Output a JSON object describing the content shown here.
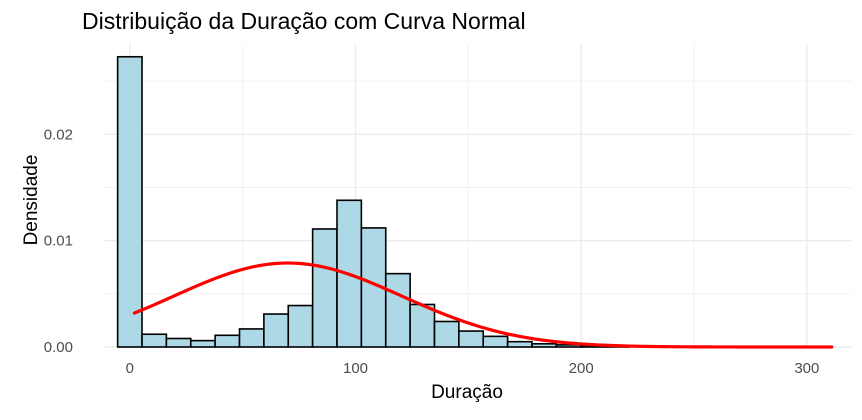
{
  "chart_data": {
    "type": "bar",
    "title": "Distribuição da Duração com Curva Normal",
    "xlabel": "Duração",
    "ylabel": "Densidade",
    "xlim": [
      -11,
      320
    ],
    "ylim": [
      0,
      0.0285
    ],
    "grid": true,
    "x_ticks": [
      0,
      100,
      200,
      300
    ],
    "x_tick_labels": [
      "0",
      "100",
      "200",
      "300"
    ],
    "y_ticks": [
      0.0,
      0.01,
      0.02
    ],
    "y_tick_labels": [
      "0.00",
      "0.01",
      "0.02"
    ],
    "bin_width": 10.8,
    "bin_start": -5.4,
    "bins": [
      {
        "x0": -5.4,
        "x1": 5.4,
        "density": 0.0273
      },
      {
        "x0": 5.4,
        "x1": 16.2,
        "density": 0.0012
      },
      {
        "x0": 16.2,
        "x1": 27.0,
        "density": 0.0008
      },
      {
        "x0": 27.0,
        "x1": 37.8,
        "density": 0.0006
      },
      {
        "x0": 37.8,
        "x1": 48.6,
        "density": 0.0011
      },
      {
        "x0": 48.6,
        "x1": 59.4,
        "density": 0.0017
      },
      {
        "x0": 59.4,
        "x1": 70.2,
        "density": 0.0031
      },
      {
        "x0": 70.2,
        "x1": 81.0,
        "density": 0.0039
      },
      {
        "x0": 81.0,
        "x1": 91.8,
        "density": 0.0111
      },
      {
        "x0": 91.8,
        "x1": 102.6,
        "density": 0.0138
      },
      {
        "x0": 102.6,
        "x1": 113.4,
        "density": 0.0112
      },
      {
        "x0": 113.4,
        "x1": 124.2,
        "density": 0.0069
      },
      {
        "x0": 124.2,
        "x1": 135.0,
        "density": 0.004
      },
      {
        "x0": 135.0,
        "x1": 145.8,
        "density": 0.0024
      },
      {
        "x0": 145.8,
        "x1": 156.6,
        "density": 0.0015
      },
      {
        "x0": 156.6,
        "x1": 167.4,
        "density": 0.001
      },
      {
        "x0": 167.4,
        "x1": 178.2,
        "density": 0.0005
      },
      {
        "x0": 178.2,
        "x1": 189.0,
        "density": 0.0003
      },
      {
        "x0": 189.0,
        "x1": 199.8,
        "density": 0.0002
      },
      {
        "x0": 199.8,
        "x1": 210.6,
        "density": 0.0001
      },
      {
        "x0": 210.6,
        "x1": 221.4,
        "density": 0.0001
      },
      {
        "x0": 221.4,
        "x1": 232.2,
        "density": 0.0
      },
      {
        "x0": 232.2,
        "x1": 243.0,
        "density": 0.0
      },
      {
        "x0": 243.0,
        "x1": 253.8,
        "density": 0.0
      },
      {
        "x0": 253.8,
        "x1": 264.6,
        "density": 0.0
      },
      {
        "x0": 264.6,
        "x1": 275.4,
        "density": 0.0
      },
      {
        "x0": 275.4,
        "x1": 286.2,
        "density": 0.0
      },
      {
        "x0": 286.2,
        "x1": 297.0,
        "density": 0.0
      },
      {
        "x0": 297.0,
        "x1": 307.8,
        "density": 0.0
      },
      {
        "x0": 307.8,
        "x1": 318.6,
        "density": 0.0
      }
    ],
    "normal_curve": {
      "mean": 70,
      "sd": 50.5,
      "x_range": [
        2,
        311
      ]
    },
    "colors": {
      "bar_fill": "#add8e6",
      "bar_stroke": "#000000",
      "curve": "#ff0000",
      "grid_major": "#ebebeb",
      "grid_minor": "#f2f2f2",
      "tick_label": "#4d4d4d"
    }
  }
}
